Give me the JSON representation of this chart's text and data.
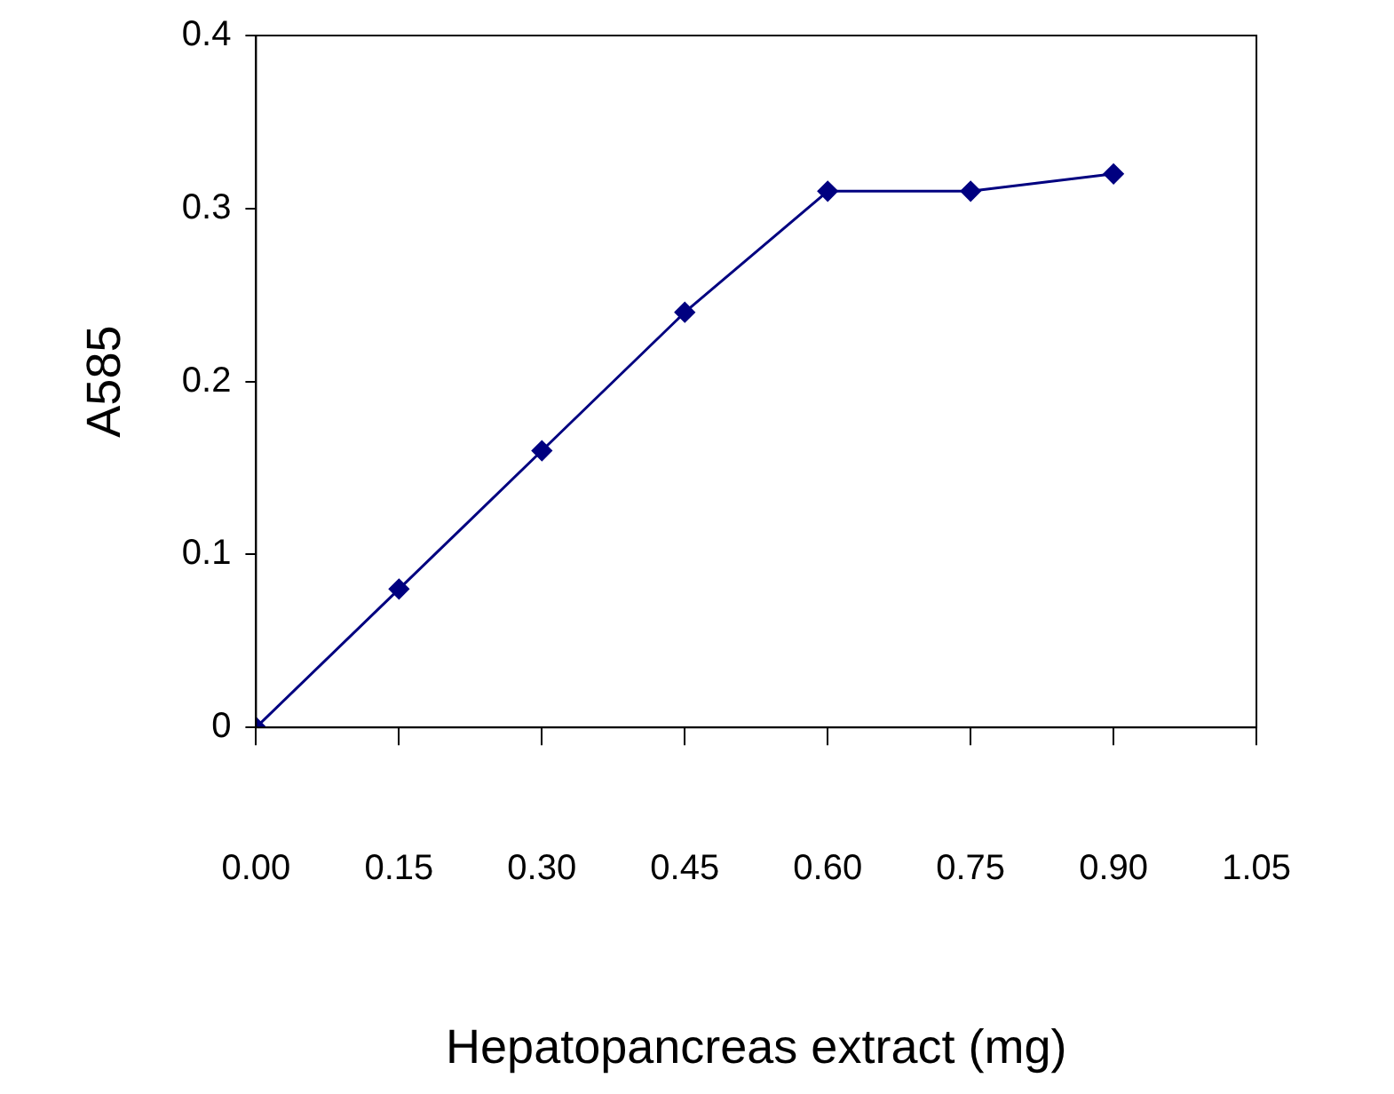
{
  "chart_data": {
    "type": "line",
    "xlabel": "Hepatopancreas extract (mg)",
    "ylabel": "A585",
    "x": [
      0,
      0.15,
      0.3,
      0.45,
      0.6,
      0.75,
      0.9
    ],
    "series": [
      {
        "color": "#000080",
        "values": [
          0,
          0.08,
          0.16,
          0.24,
          0.31,
          0.31,
          0.32
        ]
      }
    ],
    "xlim": [
      0,
      1.05
    ],
    "xticks": [
      {
        "value": 0,
        "label": "0.00"
      },
      {
        "value": 0.15,
        "label": "0.15"
      },
      {
        "value": 0.3,
        "label": "0.30"
      },
      {
        "value": 0.45,
        "label": "0.45"
      },
      {
        "value": 0.6,
        "label": "0.60"
      },
      {
        "value": 0.75,
        "label": "0.75"
      },
      {
        "value": 0.9,
        "label": "0.90"
      },
      {
        "value": 1.05,
        "label": "1.05"
      }
    ],
    "ylim": [
      0,
      0.4
    ],
    "yticks": [
      0,
      0.1,
      0.2,
      0.3,
      0.4
    ],
    "grid": false,
    "legend": false,
    "marker": "diamond",
    "line_style": "solid"
  }
}
